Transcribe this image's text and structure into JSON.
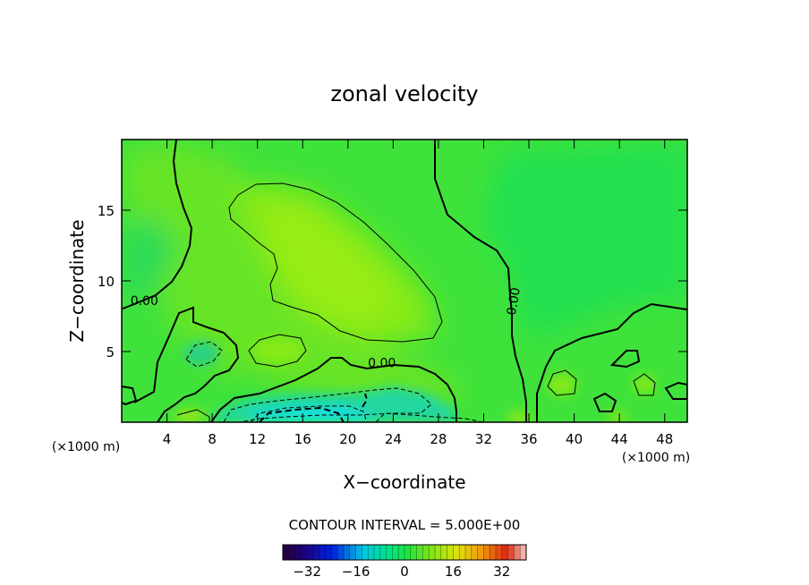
{
  "chart_data": {
    "type": "heatmap",
    "title": "zonal velocity",
    "xlabel": "X−coordinate",
    "ylabel": "Z−coordinate",
    "x_unit_left": "(×1000 m)",
    "x_unit_right": "(×1000 m)",
    "xlim": [
      0,
      50
    ],
    "ylim": [
      0,
      20
    ],
    "x_ticks": [
      4,
      8,
      12,
      16,
      20,
      24,
      28,
      32,
      36,
      40,
      44,
      48
    ],
    "x_tick_labels": [
      "4",
      "8",
      "12",
      "16",
      "20",
      "24",
      "28",
      "32",
      "36",
      "40",
      "44",
      "48"
    ],
    "y_ticks": [
      5,
      10,
      15
    ],
    "y_tick_labels": [
      "5",
      "10",
      "15"
    ],
    "contour_labels": [
      {
        "text": "0.00",
        "x": 2,
        "y": 8.3
      },
      {
        "text": "0.00",
        "x": 23,
        "y": 3.9
      },
      {
        "text": "0.00",
        "x": 35,
        "y": 8.5
      }
    ],
    "contour_interval_text": "CONTOUR INTERVAL = 5.000E+00",
    "colorbar": {
      "range": [
        -40,
        40
      ],
      "tick_values": [
        -32,
        -16,
        0,
        16,
        32
      ],
      "tick_labels": [
        "−32",
        "−16",
        "0",
        "16",
        "32"
      ]
    },
    "features": [
      {
        "kind": "positive_max",
        "value_approx": 8,
        "x": 20,
        "y": 11
      },
      {
        "kind": "negative_min",
        "value_approx": -16,
        "x": 16,
        "y": 0.5
      }
    ]
  }
}
